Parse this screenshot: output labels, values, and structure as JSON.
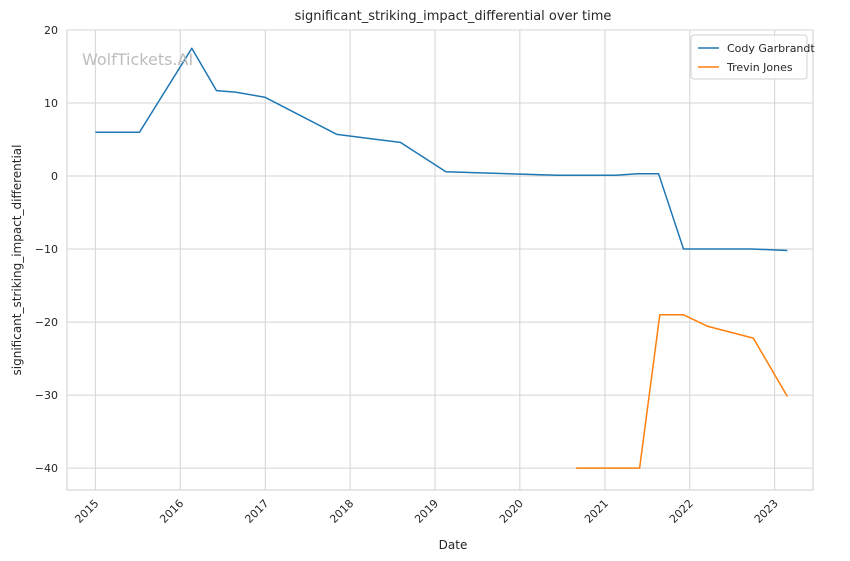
{
  "chart_data": {
    "type": "line",
    "title": "significant_striking_impact_differential over time",
    "xlabel": "Date",
    "ylabel": "significant_striking_impact_differential",
    "watermark": "WolfTickets.AI",
    "xlim": [
      "2014-09-01",
      "2023-06-15"
    ],
    "ylim": [
      -43,
      20
    ],
    "x_ticks": [
      "2015-01-01",
      "2016-01-01",
      "2017-01-01",
      "2018-01-01",
      "2019-01-01",
      "2020-01-01",
      "2021-01-01",
      "2022-01-01",
      "2023-01-01"
    ],
    "x_tick_labels": [
      "2015",
      "2016",
      "2017",
      "2018",
      "2019",
      "2020",
      "2021",
      "2022",
      "2023"
    ],
    "y_ticks": [
      20,
      10,
      0,
      -10,
      -20,
      -30,
      -40
    ],
    "y_tick_labels": [
      "20",
      "10",
      "0",
      "−10",
      "−20",
      "−30",
      "−40"
    ],
    "grid": true,
    "legend_position": "top-right",
    "series": [
      {
        "name": "Cody Garbrandt",
        "color": "#1f77b4",
        "points": [
          [
            "2015-01-01",
            6.0
          ],
          [
            "2015-07-10",
            6.0
          ],
          [
            "2016-02-20",
            17.5
          ],
          [
            "2016-06-05",
            11.7
          ],
          [
            "2016-08-25",
            11.5
          ],
          [
            "2016-12-30",
            10.8
          ],
          [
            "2017-11-05",
            5.7
          ],
          [
            "2018-08-05",
            4.6
          ],
          [
            "2019-02-17",
            0.6
          ],
          [
            "2020-06-10",
            0.1
          ],
          [
            "2021-02-15",
            0.1
          ],
          [
            "2021-05-20",
            0.3
          ],
          [
            "2021-08-20",
            0.3
          ],
          [
            "2021-12-05",
            -10.0
          ],
          [
            "2022-09-25",
            -10.0
          ],
          [
            "2023-02-25",
            -10.2
          ]
        ]
      },
      {
        "name": "Trevin Jones",
        "color": "#ff7f0e",
        "points": [
          [
            "2020-08-30",
            -40.0
          ],
          [
            "2021-05-30",
            -40.0
          ],
          [
            "2021-08-25",
            -19.0
          ],
          [
            "2021-12-05",
            -19.0
          ],
          [
            "2022-03-20",
            -20.6
          ],
          [
            "2022-10-01",
            -22.2
          ],
          [
            "2023-02-25",
            -30.2
          ]
        ]
      }
    ]
  }
}
